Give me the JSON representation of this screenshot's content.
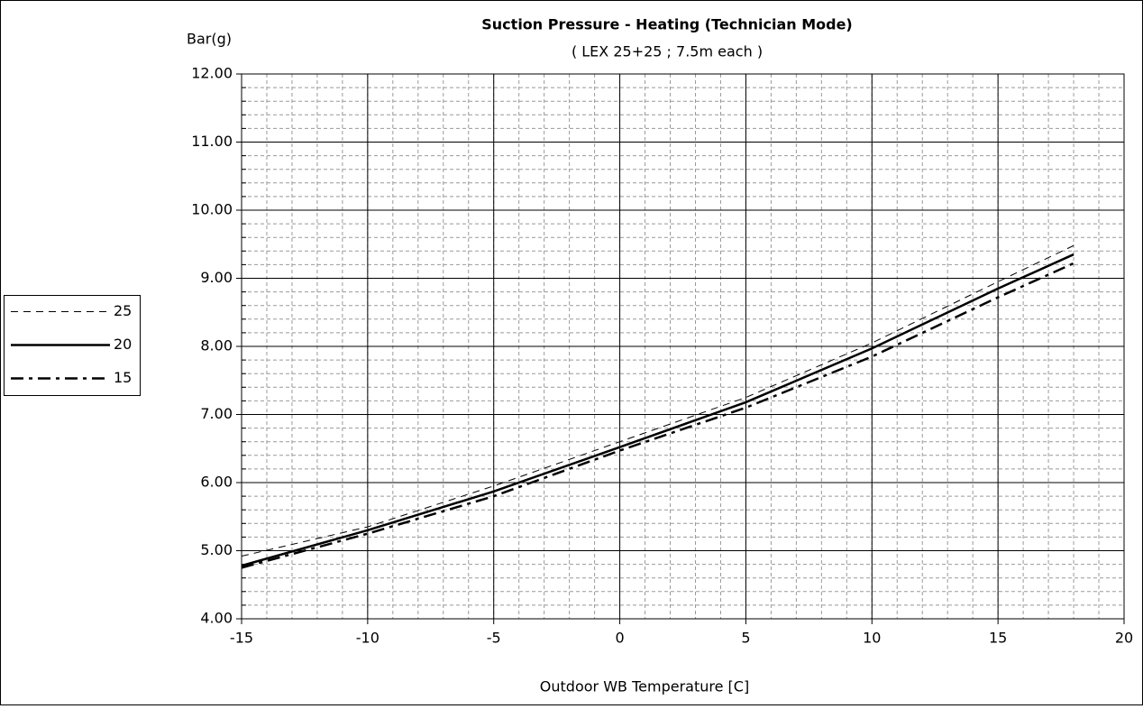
{
  "chart_data": {
    "type": "line",
    "title": "Suction Pressure - Heating (Technician Mode)",
    "subtitle": "( LEX 25+25 ; 7.5m each )",
    "y_label": "Bar(g)",
    "x_label": "Outdoor WB Temperature [C]",
    "x": [
      -15,
      -10,
      -5,
      0,
      5,
      10,
      15,
      18
    ],
    "series": [
      {
        "name": "25",
        "color": "#000000",
        "dash": "8,6",
        "width": 1,
        "values": [
          4.92,
          5.35,
          5.95,
          6.6,
          7.25,
          8.05,
          8.95,
          9.48
        ]
      },
      {
        "name": "20",
        "color": "#000000",
        "dash": "none",
        "width": 2.5,
        "values": [
          4.78,
          5.3,
          5.87,
          6.52,
          7.18,
          7.97,
          8.85,
          9.35
        ]
      },
      {
        "name": "15",
        "color": "#000000",
        "dash": "14,6,4,6",
        "width": 2.5,
        "values": [
          4.75,
          5.25,
          5.8,
          6.47,
          7.1,
          7.85,
          8.72,
          9.22
        ]
      }
    ],
    "xlim": [
      -15,
      20
    ],
    "xticks": [
      -15,
      -10,
      -5,
      0,
      5,
      10,
      15,
      20
    ],
    "ylim": [
      4,
      12
    ],
    "yticks": [
      {
        "value": 4,
        "label": "4.00"
      },
      {
        "value": 5,
        "label": "5.00"
      },
      {
        "value": 6,
        "label": "6.00"
      },
      {
        "value": 7,
        "label": "7.00"
      },
      {
        "value": 8,
        "label": "8.00"
      },
      {
        "value": 9,
        "label": "9.00"
      },
      {
        "value": 10,
        "label": "10.00"
      },
      {
        "value": 11,
        "label": "11.00"
      },
      {
        "value": 12,
        "label": "12.00"
      }
    ],
    "grid": true,
    "minor_grid": {
      "x": 1,
      "y": 0.2
    },
    "legend": "left"
  }
}
